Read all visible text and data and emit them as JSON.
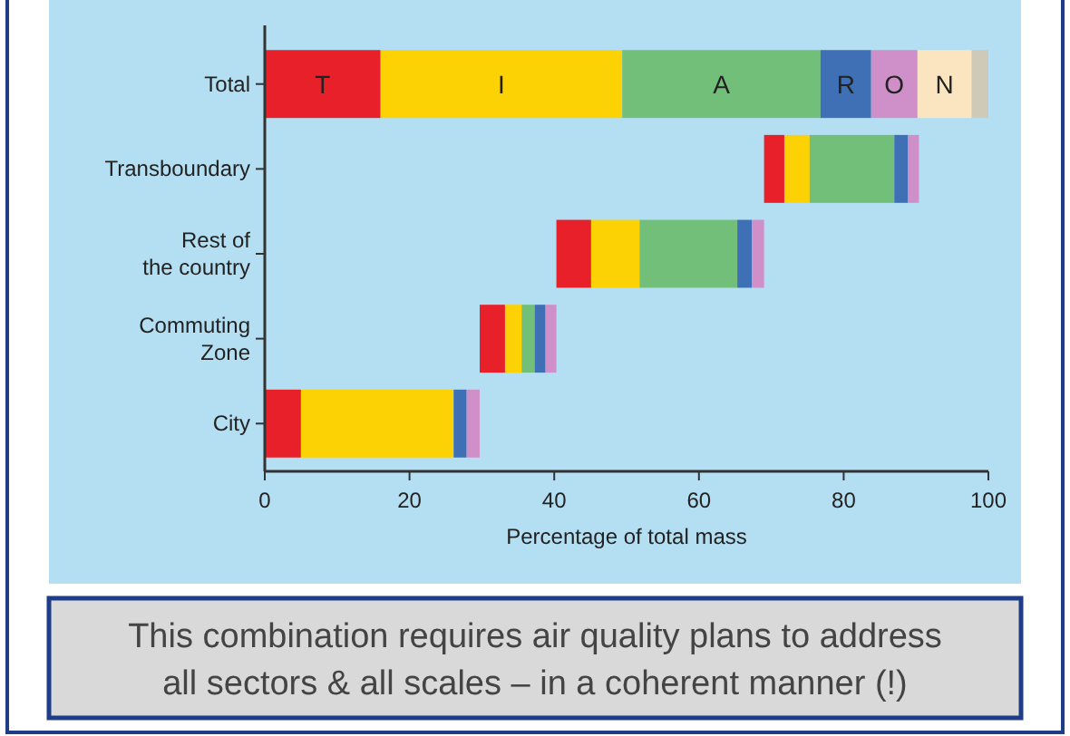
{
  "chart_data": {
    "type": "bar",
    "orientation": "horizontal",
    "xlabel": "Percentage of total mass",
    "categories": [
      "Total",
      "Transboundary",
      "Rest of\nthe country",
      "Commuting\nZone",
      "City"
    ],
    "series": [
      {
        "name": "T",
        "color": "#e8202a",
        "base": [
          0,
          69,
          40.3,
          29.7,
          0
        ],
        "values": [
          16,
          2.8,
          4.8,
          3.5,
          5
        ]
      },
      {
        "name": "I",
        "color": "#fdd204",
        "base": [
          16,
          71.8,
          45.1,
          33.2,
          5
        ],
        "values": [
          33.4,
          3.5,
          6.7,
          2.3,
          21.1
        ]
      },
      {
        "name": "A",
        "color": "#72bf7a",
        "base": [
          49.4,
          75.3,
          51.8,
          35.5,
          null
        ],
        "values": [
          27.4,
          11.7,
          13.5,
          1.8,
          null
        ]
      },
      {
        "name": "R",
        "color": "#3f6fb5",
        "base": [
          76.8,
          87,
          65.3,
          37.3,
          26.1
        ],
        "values": [
          7,
          1.9,
          2,
          1.5,
          1.8
        ]
      },
      {
        "name": "O",
        "color": "#cf8fc8",
        "base": [
          83.8,
          88.9,
          67.3,
          38.8,
          27.9
        ],
        "values": [
          6.4,
          1.5,
          1.7,
          1.5,
          1.8
        ]
      },
      {
        "name": "N",
        "color": "#fbe5c0",
        "base": [
          90.2,
          null,
          null,
          null,
          null
        ],
        "values": [
          7.5,
          null,
          null,
          null,
          null
        ]
      },
      {
        "color": "#cfc9b8",
        "base": [
          97.7,
          null,
          null,
          null,
          null
        ],
        "values": [
          2.3,
          null,
          null,
          null,
          null
        ]
      }
    ],
    "xlim": [
      0,
      100
    ],
    "xticks": [
      0,
      20,
      40,
      60,
      80,
      100
    ],
    "annotations": [
      "This combination requires air quality plans to address all sectors & all scales – in a coherent manner (!)"
    ]
  }
}
